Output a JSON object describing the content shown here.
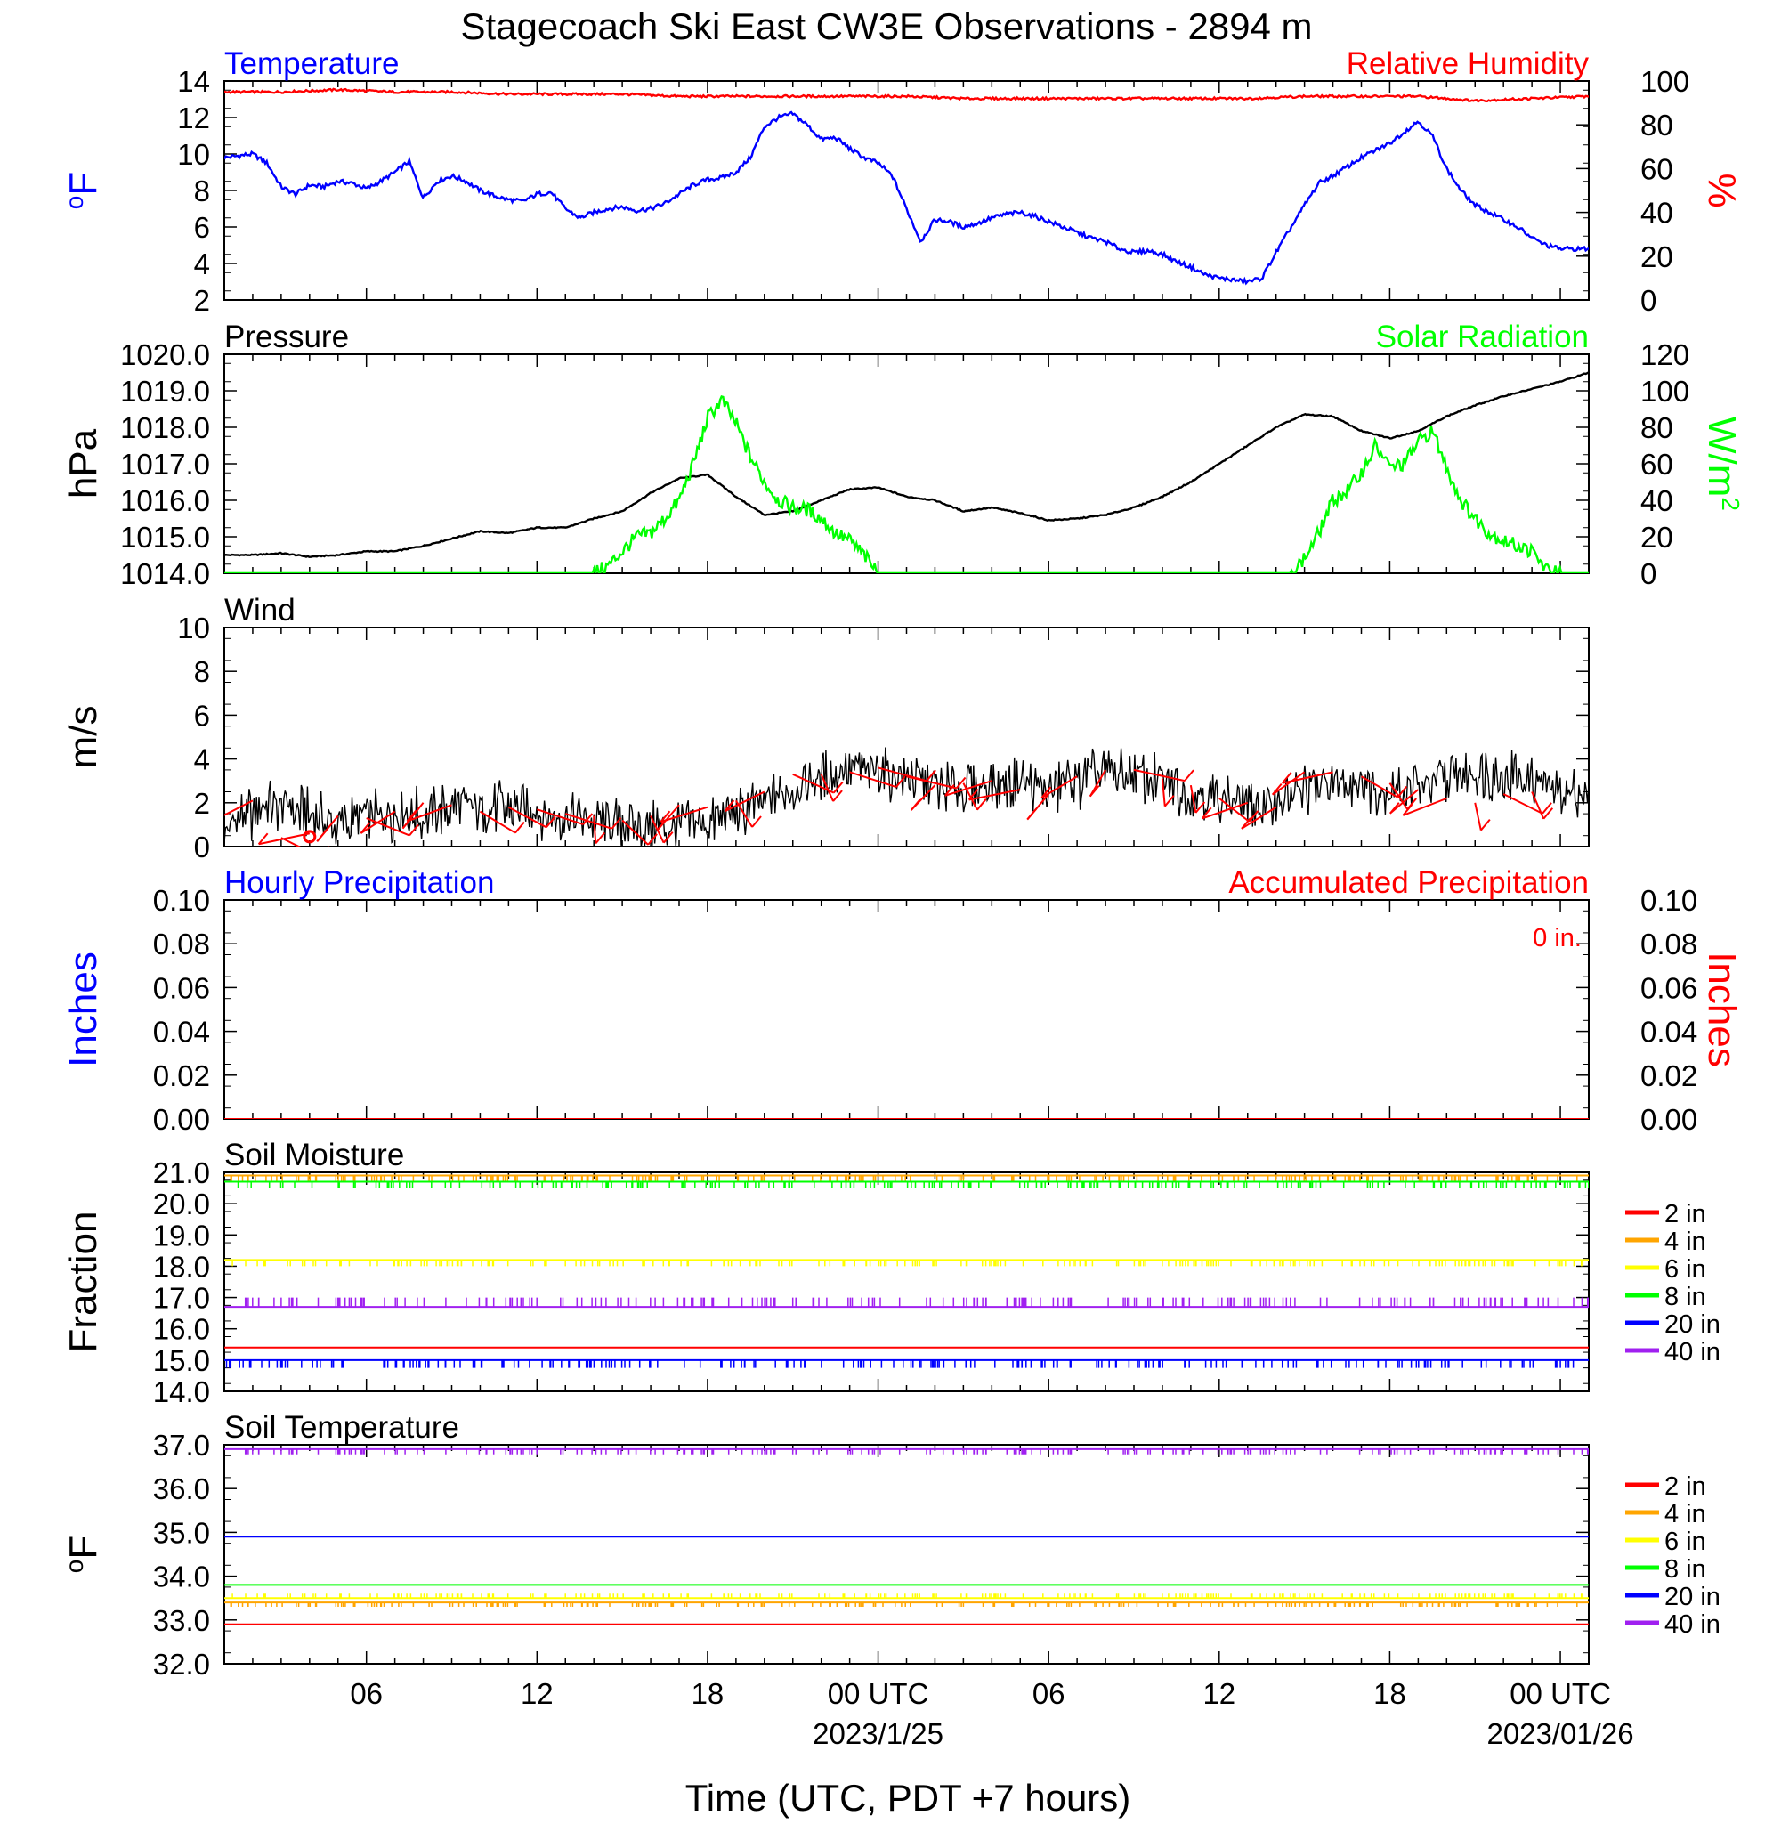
{
  "title": "Stagecoach Ski East CW3E Observations - 2894 m",
  "xlabel": "Time (UTC, PDT +7 hours)",
  "time_axis": {
    "range_hours": [
      0,
      48
    ],
    "start": "2023-01-24 01:00 UTC",
    "tick_hours": [
      5,
      11,
      17,
      23,
      29,
      35,
      41,
      47
    ],
    "tick_labels": [
      "06",
      "12",
      "18",
      "00 UTC",
      "06",
      "12",
      "18",
      "00 UTC"
    ],
    "date_labels": [
      {
        "hour": 23,
        "label": "2023/1/25"
      },
      {
        "hour": 47,
        "label": "2023/01/26"
      }
    ]
  },
  "chart_data": [
    {
      "type": "line",
      "panel": "temperature",
      "title_left": "Temperature",
      "title_right": "Relative Humidity",
      "ylabel_left": "oF",
      "ylabel_right": "%",
      "ylim_left": [
        2,
        14
      ],
      "yticks_left": [
        "14",
        "12",
        "10",
        "8",
        "6",
        "4",
        "2"
      ],
      "ylim_right": [
        0,
        100
      ],
      "yticks_right": [
        "100",
        "80",
        "60",
        "40",
        "20",
        "0"
      ],
      "series": [
        {
          "name": "Temperature",
          "axis": "left",
          "color": "#0000ff",
          "x": [
            0,
            0.5,
            1,
            1.5,
            2,
            2.5,
            3,
            3.5,
            4,
            4.5,
            5,
            5.5,
            6,
            6.5,
            7,
            7.5,
            8,
            8.5,
            9,
            9.5,
            10,
            10.5,
            11,
            11.5,
            12,
            12.5,
            13,
            13.5,
            14,
            14.5,
            15,
            15.5,
            16,
            16.5,
            17,
            17.5,
            18,
            18.5,
            19,
            19.5,
            20,
            20.5,
            21,
            21.5,
            22,
            22.5,
            23,
            23.5,
            24,
            24.5,
            25,
            25.5,
            26,
            26.5,
            27,
            27.5,
            28,
            28.5,
            29,
            29.5,
            30,
            30.5,
            31,
            31.5,
            32,
            32.5,
            33,
            33.5,
            34,
            34.5,
            35,
            35.5,
            36,
            36.5,
            37,
            37.5,
            38,
            38.5,
            39,
            39.5,
            40,
            40.5,
            41,
            41.5,
            42,
            42.5,
            43,
            43.5,
            44,
            44.5,
            45,
            45.5,
            46,
            46.5,
            47,
            47.5,
            48
          ],
          "y": [
            9.8,
            9.9,
            10.0,
            9.5,
            8.2,
            7.8,
            8.3,
            8.2,
            8.5,
            8.4,
            8.1,
            8.5,
            9.0,
            9.6,
            7.6,
            8.5,
            8.8,
            8.5,
            8.0,
            7.7,
            7.5,
            7.4,
            7.8,
            7.9,
            7.0,
            6.5,
            6.8,
            7.0,
            7.1,
            6.9,
            7.0,
            7.3,
            7.8,
            8.3,
            8.6,
            8.7,
            9.0,
            9.8,
            11.5,
            12.0,
            12.2,
            11.6,
            10.8,
            10.9,
            10.3,
            9.8,
            9.5,
            8.8,
            7.0,
            5.2,
            6.4,
            6.3,
            6.0,
            6.2,
            6.5,
            6.7,
            6.8,
            6.6,
            6.3,
            6.0,
            5.7,
            5.4,
            5.2,
            4.8,
            4.6,
            4.7,
            4.5,
            4.1,
            3.8,
            3.4,
            3.2,
            3.1,
            3.0,
            3.2,
            4.6,
            5.9,
            7.2,
            8.4,
            8.8,
            9.3,
            9.8,
            10.2,
            10.6,
            11.2,
            11.8,
            11.0,
            9.2,
            8.0,
            7.2,
            6.8,
            6.4,
            6.0,
            5.4,
            5.0,
            4.8,
            4.8,
            4.8
          ]
        },
        {
          "name": "Relative Humidity",
          "axis": "right",
          "color": "#ff0000",
          "x": [
            0,
            2,
            4,
            6,
            8,
            10,
            12,
            14,
            16,
            18,
            20,
            22,
            24,
            26,
            28,
            30,
            32,
            34,
            36,
            38,
            40,
            42,
            44,
            46,
            48
          ],
          "y": [
            95,
            95,
            96,
            95,
            95,
            94,
            94,
            94,
            93,
            93,
            93,
            93,
            93,
            92,
            92,
            92,
            92,
            92,
            92,
            93,
            93,
            93,
            91,
            92,
            93
          ]
        }
      ]
    },
    {
      "type": "line",
      "panel": "pressure",
      "title_left": "Pressure",
      "title_right": "Solar Radiation",
      "ylabel_left": "hPa",
      "ylabel_right": "W/m2",
      "ylim_left": [
        1014,
        1020
      ],
      "yticks_left": [
        "1020.0",
        "1019.0",
        "1018.0",
        "1017.0",
        "1016.0",
        "1015.0",
        "1014.0"
      ],
      "ylim_right": [
        0,
        120
      ],
      "yticks_right": [
        "120",
        "100",
        "80",
        "60",
        "40",
        "20",
        "0"
      ],
      "series": [
        {
          "name": "Pressure",
          "axis": "left",
          "color": "#000000",
          "x": [
            0,
            1,
            2,
            3,
            4,
            5,
            6,
            7,
            8,
            9,
            10,
            11,
            12,
            13,
            14,
            15,
            16,
            17,
            18,
            19,
            20,
            21,
            22,
            23,
            24,
            25,
            26,
            27,
            28,
            29,
            30,
            31,
            32,
            33,
            34,
            35,
            36,
            37,
            38,
            39,
            40,
            41,
            42,
            43,
            44,
            45,
            46,
            47,
            48
          ],
          "y": [
            1014.5,
            1014.5,
            1014.55,
            1014.45,
            1014.5,
            1014.6,
            1014.6,
            1014.75,
            1014.95,
            1015.15,
            1015.1,
            1015.25,
            1015.25,
            1015.5,
            1015.7,
            1016.2,
            1016.6,
            1016.7,
            1016.1,
            1015.6,
            1015.7,
            1016.0,
            1016.3,
            1016.35,
            1016.1,
            1016.0,
            1015.7,
            1015.8,
            1015.65,
            1015.45,
            1015.5,
            1015.6,
            1015.8,
            1016.1,
            1016.5,
            1017.0,
            1017.5,
            1018.0,
            1018.35,
            1018.3,
            1017.9,
            1017.7,
            1017.9,
            1018.3,
            1018.6,
            1018.85,
            1019.05,
            1019.25,
            1019.5
          ]
        },
        {
          "name": "Solar Radiation",
          "axis": "right",
          "color": "#00ff00",
          "x": [
            0,
            13,
            13.5,
            14,
            14.5,
            15,
            15.5,
            16,
            16.5,
            17,
            17.5,
            18,
            18.5,
            19,
            19.5,
            20,
            20.5,
            21,
            21.5,
            22,
            22.5,
            23,
            37.5,
            38,
            38.5,
            39,
            39.5,
            40,
            40.5,
            41,
            41.5,
            42,
            42.5,
            43,
            43.5,
            44,
            44.5,
            45,
            45.5,
            46,
            46.5,
            47,
            48
          ],
          "y": [
            0,
            0,
            4,
            12,
            20,
            22,
            30,
            40,
            60,
            85,
            95,
            82,
            64,
            50,
            40,
            36,
            35,
            30,
            22,
            18,
            10,
            0,
            0,
            8,
            22,
            40,
            45,
            55,
            70,
            58,
            60,
            72,
            78,
            58,
            40,
            30,
            22,
            18,
            15,
            12,
            2,
            0,
            0
          ]
        }
      ]
    },
    {
      "type": "line",
      "panel": "wind",
      "title_left": "Wind",
      "ylabel_left": "m/s",
      "ylim_left": [
        0,
        10
      ],
      "yticks_left": [
        "10",
        "8",
        "6",
        "4",
        "2",
        "0"
      ],
      "series": [
        {
          "name": "Wind speed",
          "color": "#000000",
          "x": [
            0,
            1,
            2,
            3,
            4,
            5,
            6,
            7,
            8,
            9,
            10,
            11,
            12,
            13,
            14,
            15,
            16,
            17,
            18,
            19,
            20,
            21,
            22,
            23,
            24,
            25,
            26,
            27,
            28,
            29,
            30,
            31,
            32,
            33,
            34,
            35,
            36,
            37,
            38,
            39,
            40,
            41,
            42,
            43,
            44,
            45,
            46,
            47,
            48
          ],
          "y": [
            0.8,
            1.6,
            2.0,
            1.4,
            1.0,
            1.3,
            1.5,
            1.5,
            1.8,
            1.9,
            1.6,
            1.7,
            1.3,
            1.2,
            1.1,
            1.0,
            0.9,
            1.1,
            1.5,
            2.0,
            2.6,
            3.1,
            3.5,
            3.5,
            3.2,
            2.9,
            2.6,
            2.8,
            2.9,
            2.5,
            2.9,
            3.4,
            3.2,
            2.9,
            2.5,
            2.2,
            1.8,
            2.0,
            2.6,
            3.1,
            2.9,
            2.5,
            2.7,
            3.1,
            3.4,
            3.3,
            3.0,
            2.6,
            2.4
          ]
        },
        {
          "name": "Wind barbs",
          "color": "#ff0000",
          "x": [
            1,
            2,
            3,
            4,
            5,
            6,
            7,
            8,
            9,
            10,
            11,
            12,
            13,
            14,
            15,
            16,
            17,
            18,
            19,
            20,
            21,
            22,
            23,
            24,
            25,
            26,
            27,
            28,
            29,
            30,
            31,
            32,
            33,
            34,
            35,
            36,
            37,
            38,
            39,
            40,
            41,
            42,
            43,
            44,
            45,
            46
          ],
          "y": [
            2.1,
            0.4,
            0.6,
            1.4,
            1.3,
            1.6,
            2.0,
            1.9,
            1.6,
            1.8,
            1.7,
            1.5,
            1.4,
            1.2,
            1.4,
            1.9,
            1.8,
            2.1,
            2.5,
            3.3,
            3.3,
            3.4,
            3.6,
            3.2,
            2.8,
            2.9,
            3.0,
            2.6,
            2.4,
            3.2,
            3.5,
            3.5,
            3.1,
            2.8,
            2.2,
            2.0,
            1.8,
            3.4,
            3.4,
            3.2,
            2.9,
            2.6,
            2.2,
            2.0,
            2.4,
            2.5
          ]
        }
      ]
    },
    {
      "type": "line",
      "panel": "precipitation",
      "title_left": "Hourly Precipitation",
      "title_right": "Accumulated Precipitation",
      "annotation": "0 in.",
      "ylabel_left": "Inches",
      "ylabel_right": "Inches",
      "ylim_left": [
        0,
        0.1
      ],
      "yticks_left": [
        "0.10",
        "0.08",
        "0.06",
        "0.04",
        "0.02",
        "0.00"
      ],
      "ylim_right": [
        0,
        0.1
      ],
      "yticks_right": [
        "0.10",
        "0.08",
        "0.06",
        "0.04",
        "0.02",
        "0.00"
      ],
      "series": [
        {
          "name": "Hourly Precipitation",
          "color": "#0000ff",
          "x": [
            0,
            48
          ],
          "y": [
            0,
            0
          ]
        },
        {
          "name": "Accumulated Precipitation",
          "color": "#ff0000",
          "x": [
            0,
            48
          ],
          "y": [
            0,
            0
          ]
        }
      ]
    },
    {
      "type": "line",
      "panel": "soil_moisture",
      "title_left": "Soil Moisture",
      "ylabel_left": "Fraction",
      "ylim_left": [
        14,
        21
      ],
      "yticks_left": [
        "21.0",
        "20.0",
        "19.0",
        "18.0",
        "17.0",
        "16.0",
        "15.0",
        "14.0"
      ],
      "legend_position": "right",
      "series": [
        {
          "name": "2 in",
          "color": "#ff0000",
          "level": 15.4
        },
        {
          "name": "4 in",
          "color": "#ffa500",
          "level": 20.9
        },
        {
          "name": "6 in",
          "color": "#ffff00",
          "level": 18.2
        },
        {
          "name": "8 in",
          "color": "#00ff00",
          "level": 20.7
        },
        {
          "name": "20 in",
          "color": "#0000ff",
          "level": 15.0
        },
        {
          "name": "40 in",
          "color": "#a020f0",
          "level": 16.7
        }
      ]
    },
    {
      "type": "line",
      "panel": "soil_temperature",
      "title_left": "Soil Temperature",
      "ylabel_left": "oF",
      "ylim_left": [
        32,
        37
      ],
      "yticks_left": [
        "37.0",
        "36.0",
        "35.0",
        "34.0",
        "33.0",
        "32.0"
      ],
      "legend_position": "right",
      "series": [
        {
          "name": "2 in",
          "color": "#ff0000",
          "level": 32.9
        },
        {
          "name": "4 in",
          "color": "#ffa500",
          "level": 33.4
        },
        {
          "name": "6 in",
          "color": "#ffff00",
          "level": 33.5
        },
        {
          "name": "8 in",
          "color": "#00ff00",
          "level": 33.8
        },
        {
          "name": "20 in",
          "color": "#0000ff",
          "level": 34.9
        },
        {
          "name": "40 in",
          "color": "#a020f0",
          "level": 36.9
        }
      ]
    }
  ]
}
